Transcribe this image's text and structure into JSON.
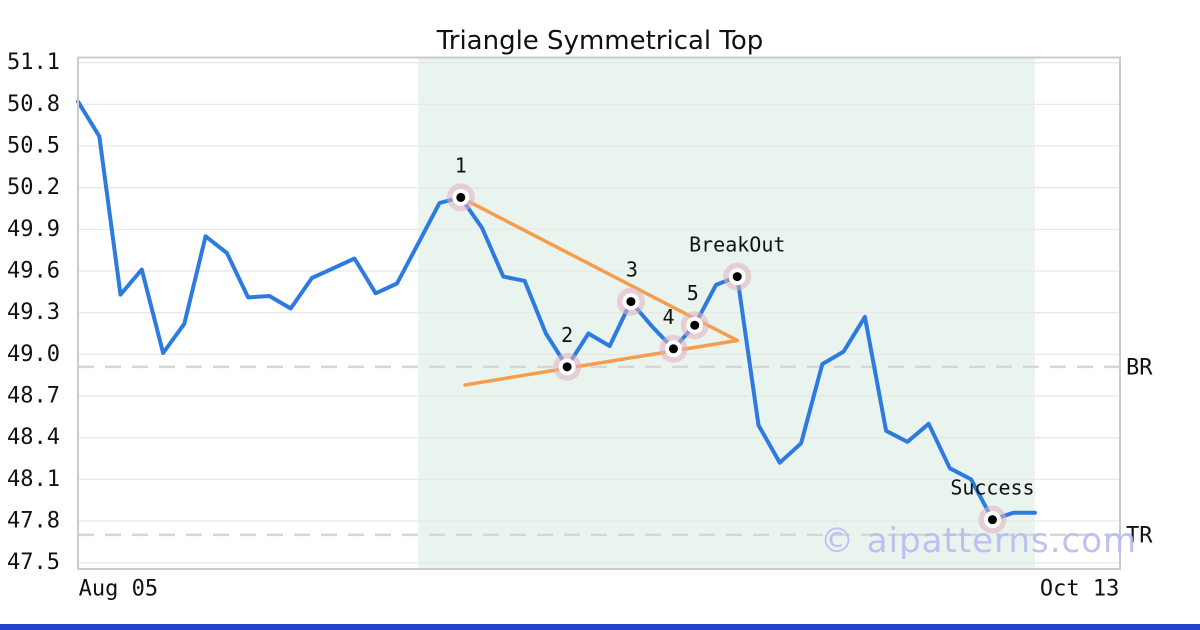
{
  "watermark": "© aipatterns.com",
  "colors": {
    "price_line": "#2E7BE0",
    "trendline": "#F69C4D",
    "pattern_zone": "#E9F4EF",
    "marker_halo": "rgba(225,177,190,0.55)",
    "marker_dot": "#000000",
    "grid": "#E8E8E8",
    "level_dash": "#D6D6D6",
    "plot_border": "#CBCBCB",
    "text": "#111111",
    "accent_bar": "#2244CC",
    "watermark": "#B8BBF0"
  },
  "chart_data": {
    "type": "line",
    "title": "Triangle Symmetrical Top",
    "xlabel": "",
    "ylabel": "",
    "ylim": [
      47.5,
      51.1
    ],
    "y_ticks": [
      51.1,
      50.8,
      50.5,
      50.2,
      49.9,
      49.6,
      49.3,
      49.0,
      48.7,
      48.4,
      48.1,
      47.8,
      47.5
    ],
    "x_range_days": [
      0,
      49
    ],
    "x_labels": [
      {
        "text": "Aug 05",
        "day": 1.9
      },
      {
        "text": "Oct 13",
        "day": 47.1
      }
    ],
    "grid": "horizontal-only",
    "series": [
      {
        "name": "price",
        "x_is_day_index": true,
        "values": [
          50.82,
          50.57,
          49.43,
          49.61,
          49.01,
          49.22,
          49.85,
          49.73,
          49.41,
          49.42,
          49.33,
          49.55,
          49.62,
          49.69,
          49.44,
          49.51,
          49.8,
          50.09,
          50.13,
          49.91,
          49.56,
          49.53,
          49.15,
          48.91,
          49.15,
          49.06,
          49.38,
          49.2,
          49.04,
          49.21,
          49.5,
          49.56,
          48.49,
          48.22,
          48.36,
          48.93,
          49.02,
          49.27,
          48.45,
          48.37,
          48.5,
          48.18,
          48.1,
          47.81,
          47.86,
          47.86
        ]
      }
    ],
    "annotations": [
      {
        "label": "1",
        "day": 18,
        "value": 50.13,
        "dx": 0
      },
      {
        "label": "2",
        "day": 23,
        "value": 48.91,
        "dx": 0
      },
      {
        "label": "3",
        "day": 26,
        "value": 49.38,
        "dx": 1
      },
      {
        "label": "4",
        "day": 28,
        "value": 49.04,
        "dx": -5
      },
      {
        "label": "5",
        "day": 29,
        "value": 49.21,
        "dx": -2
      },
      {
        "label": "BreakOut",
        "day": 31,
        "value": 49.56,
        "dx": 0
      },
      {
        "label": "Success",
        "day": 43,
        "value": 47.81,
        "dx": 0
      }
    ],
    "trendlines": [
      {
        "name": "upper",
        "from": {
          "day": 18,
          "value": 50.13
        },
        "to": {
          "day": 31,
          "value": 49.1
        }
      },
      {
        "name": "lower",
        "from": {
          "day": 18.2,
          "value": 48.78
        },
        "to": {
          "day": 31,
          "value": 49.1
        }
      }
    ],
    "levels": [
      {
        "label": "BR",
        "value": 48.91
      },
      {
        "label": "TR",
        "value": 47.7
      }
    ],
    "pattern_zone": {
      "from_day": 16,
      "to_day": 45
    }
  }
}
